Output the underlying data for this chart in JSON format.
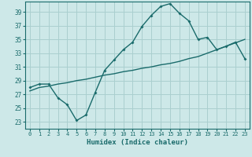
{
  "xlabel": "Humidex (Indice chaleur)",
  "ylabel": "",
  "x_ticks": [
    0,
    1,
    2,
    3,
    4,
    5,
    6,
    7,
    8,
    9,
    10,
    11,
    12,
    13,
    14,
    15,
    16,
    17,
    18,
    19,
    20,
    21,
    22,
    23
  ],
  "y_ticks": [
    23,
    25,
    27,
    29,
    31,
    33,
    35,
    37,
    39
  ],
  "xlim": [
    -0.5,
    23.5
  ],
  "ylim": [
    22.0,
    40.5
  ],
  "bg_color": "#cde8e8",
  "grid_color": "#aacfcf",
  "line_color": "#1a6b6b",
  "line1_x": [
    0,
    1,
    2,
    3,
    4,
    5,
    6,
    7,
    8,
    9,
    10,
    11,
    12,
    13,
    14,
    15,
    16,
    17,
    18,
    19,
    20,
    21,
    22,
    23
  ],
  "line1_y": [
    28.0,
    28.5,
    28.5,
    26.5,
    25.5,
    23.2,
    24.0,
    27.3,
    30.5,
    32.0,
    33.5,
    34.6,
    36.9,
    38.5,
    39.8,
    40.2,
    38.8,
    37.7,
    35.0,
    35.3,
    33.5,
    34.0,
    34.6,
    32.2
  ],
  "line2_x": [
    0,
    1,
    2,
    3,
    4,
    5,
    6,
    7,
    8,
    9,
    10,
    11,
    12,
    13,
    14,
    15,
    16,
    17,
    18,
    19,
    20,
    21,
    22,
    23
  ],
  "line2_y": [
    27.5,
    28.0,
    28.2,
    28.5,
    28.7,
    29.0,
    29.2,
    29.5,
    29.8,
    30.0,
    30.3,
    30.5,
    30.8,
    31.0,
    31.3,
    31.5,
    31.8,
    32.2,
    32.5,
    33.0,
    33.5,
    34.0,
    34.5,
    35.0
  ]
}
